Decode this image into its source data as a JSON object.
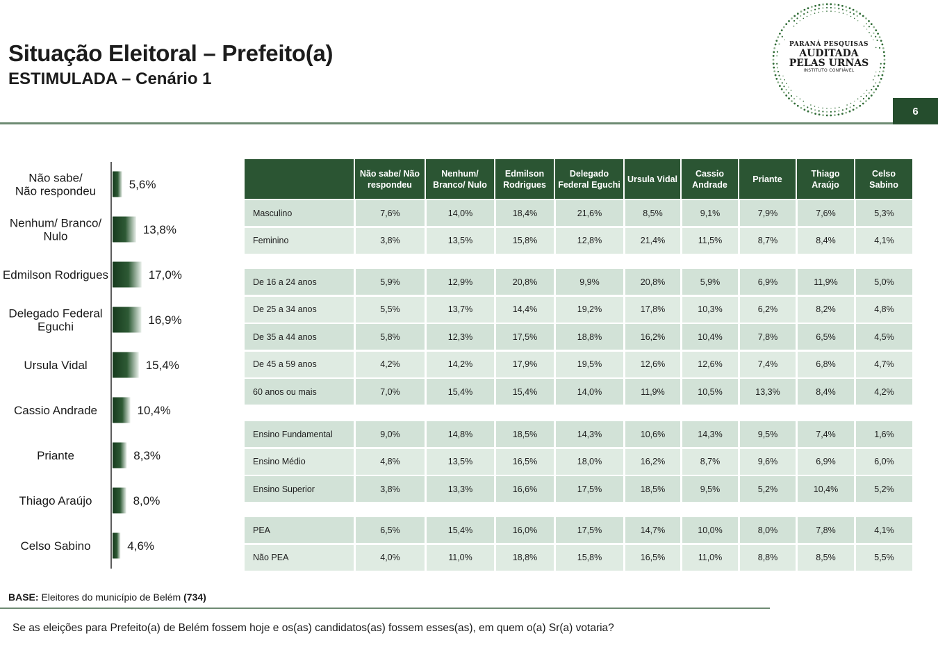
{
  "header": {
    "title": "Situação Eleitoral – Prefeito(a)",
    "subtitle": "ESTIMULADA – Cenário 1",
    "page_number": "6",
    "logo": {
      "line1": "PARANÁ PESQUISAS",
      "line2": "AUDITADA",
      "line3": "PELAS URNAS",
      "line4": "INSTITUTO CONFIÁVEL"
    }
  },
  "colors": {
    "accent": "#2b5533",
    "row_light": "#dfebe2",
    "row_dark": "#d2e2d7",
    "bar_dark": "#1f4527"
  },
  "chart_data": [
    {
      "type": "bar",
      "orientation": "horizontal",
      "categories": [
        "Não sabe/ Não respondeu",
        "Nenhum/ Branco/ Nulo",
        "Edmilson Rodrigues",
        "Delegado Federal Eguchi",
        "Ursula Vidal",
        "Cassio Andrade",
        "Priante",
        "Thiago Araújo",
        "Celso Sabino"
      ],
      "category_lines": [
        [
          "Não sabe/",
          "Não respondeu"
        ],
        [
          "Nenhum/ Branco/",
          "Nulo"
        ],
        [
          "Edmilson Rodrigues"
        ],
        [
          "Delegado Federal",
          "Eguchi"
        ],
        [
          "Ursula Vidal"
        ],
        [
          "Cassio Andrade"
        ],
        [
          "Priante"
        ],
        [
          "Thiago Araújo"
        ],
        [
          "Celso Sabino"
        ]
      ],
      "values": [
        5.6,
        13.8,
        17.0,
        16.9,
        15.4,
        10.4,
        8.3,
        8.0,
        4.6
      ],
      "value_labels": [
        "5,6%",
        "13,8%",
        "17,0%",
        "16,9%",
        "15,4%",
        "10,4%",
        "8,3%",
        "8,0%",
        "4,6%"
      ],
      "unit": "%"
    },
    {
      "type": "table",
      "columns": [
        "",
        "Não sabe/ Não respondeu",
        "Nenhum/ Branco/ Nulo",
        "Edmilson Rodrigues",
        "Delegado Federal Eguchi",
        "Ursula Vidal",
        "Cassio Andrade",
        "Priante",
        "Thiago Araújo",
        "Celso Sabino"
      ],
      "column_lines": [
        [],
        [
          "Não sabe/ Não",
          "respondeu"
        ],
        [
          "Nenhum/",
          "Branco/ Nulo"
        ],
        [
          "Edmilson",
          "Rodrigues"
        ],
        [
          "Delegado",
          "Federal Eguchi"
        ],
        [
          "Ursula Vidal"
        ],
        [
          "Cassio",
          "Andrade"
        ],
        [
          "Priante"
        ],
        [
          "Thiago",
          "Araújo"
        ],
        [
          "Celso",
          "Sabino"
        ]
      ],
      "groups": [
        {
          "rows": [
            {
              "label": "Masculino",
              "values": [
                "7,6%",
                "14,0%",
                "18,4%",
                "21,6%",
                "8,5%",
                "9,1%",
                "7,9%",
                "7,6%",
                "5,3%"
              ]
            },
            {
              "label": "Feminino",
              "values": [
                "3,8%",
                "13,5%",
                "15,8%",
                "12,8%",
                "21,4%",
                "11,5%",
                "8,7%",
                "8,4%",
                "4,1%"
              ]
            }
          ]
        },
        {
          "rows": [
            {
              "label": "De 16 a 24 anos",
              "values": [
                "5,9%",
                "12,9%",
                "20,8%",
                "9,9%",
                "20,8%",
                "5,9%",
                "6,9%",
                "11,9%",
                "5,0%"
              ]
            },
            {
              "label": "De 25 a 34 anos",
              "values": [
                "5,5%",
                "13,7%",
                "14,4%",
                "19,2%",
                "17,8%",
                "10,3%",
                "6,2%",
                "8,2%",
                "4,8%"
              ]
            },
            {
              "label": "De 35 a 44 anos",
              "values": [
                "5,8%",
                "12,3%",
                "17,5%",
                "18,8%",
                "16,2%",
                "10,4%",
                "7,8%",
                "6,5%",
                "4,5%"
              ]
            },
            {
              "label": "De 45 a 59 anos",
              "values": [
                "4,2%",
                "14,2%",
                "17,9%",
                "19,5%",
                "12,6%",
                "12,6%",
                "7,4%",
                "6,8%",
                "4,7%"
              ]
            },
            {
              "label": "60 anos ou mais",
              "values": [
                "7,0%",
                "15,4%",
                "15,4%",
                "14,0%",
                "11,9%",
                "10,5%",
                "13,3%",
                "8,4%",
                "4,2%"
              ]
            }
          ]
        },
        {
          "rows": [
            {
              "label": "Ensino Fundamental",
              "values": [
                "9,0%",
                "14,8%",
                "18,5%",
                "14,3%",
                "10,6%",
                "14,3%",
                "9,5%",
                "7,4%",
                "1,6%"
              ]
            },
            {
              "label": "Ensino Médio",
              "values": [
                "4,8%",
                "13,5%",
                "16,5%",
                "18,0%",
                "16,2%",
                "8,7%",
                "9,6%",
                "6,9%",
                "6,0%"
              ]
            },
            {
              "label": "Ensino Superior",
              "values": [
                "3,8%",
                "13,3%",
                "16,6%",
                "17,5%",
                "18,5%",
                "9,5%",
                "5,2%",
                "10,4%",
                "5,2%"
              ]
            }
          ]
        },
        {
          "rows": [
            {
              "label": "PEA",
              "values": [
                "6,5%",
                "15,4%",
                "16,0%",
                "17,5%",
                "14,7%",
                "10,0%",
                "8,0%",
                "7,8%",
                "4,1%"
              ]
            },
            {
              "label": "Não PEA",
              "values": [
                "4,0%",
                "11,0%",
                "18,8%",
                "15,8%",
                "16,5%",
                "11,0%",
                "8,8%",
                "8,5%",
                "5,5%"
              ]
            }
          ]
        }
      ]
    }
  ],
  "footer": {
    "base_label": "BASE:",
    "base_text": " Eleitores do município de Belém ",
    "base_n": "(734)",
    "question": "Se as eleições para Prefeito(a) de Belém fossem hoje e os(as) candidatos(as) fossem esses(as), em quem o(a) Sr(a) votaria?"
  }
}
